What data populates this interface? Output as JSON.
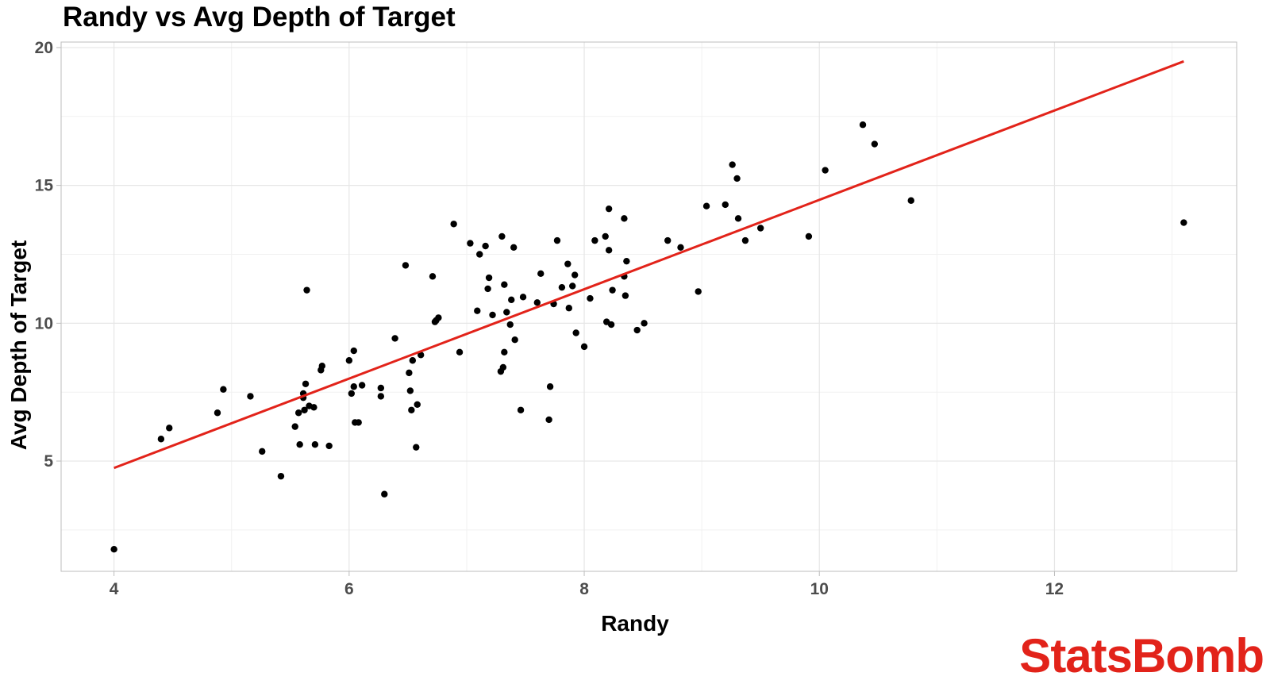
{
  "chart_data": {
    "type": "scatter",
    "title": "Randy vs Avg Depth of Target",
    "xlabel": "Randy",
    "ylabel": "Avg Depth of Target",
    "xlim": [
      3.55,
      13.55
    ],
    "ylim": [
      1.0,
      20.2
    ],
    "xticks": [
      4,
      6,
      8,
      10,
      12
    ],
    "yticks": [
      5,
      10,
      15,
      20
    ],
    "grid": true,
    "colors": {
      "points": "#000000",
      "trend": "#e2231a",
      "grid": "#e6e6e6",
      "frame": "#bdbdbd",
      "ticks": "#4d4d4d"
    },
    "trendline": {
      "x": [
        4.0,
        13.1
      ],
      "y": [
        4.75,
        19.5
      ]
    },
    "points": [
      {
        "x": 4.0,
        "y": 1.8
      },
      {
        "x": 4.4,
        "y": 5.8
      },
      {
        "x": 4.47,
        "y": 6.2
      },
      {
        "x": 4.88,
        "y": 6.75
      },
      {
        "x": 4.93,
        "y": 7.6
      },
      {
        "x": 5.16,
        "y": 7.35
      },
      {
        "x": 5.26,
        "y": 5.35
      },
      {
        "x": 5.42,
        "y": 4.45
      },
      {
        "x": 5.54,
        "y": 6.25
      },
      {
        "x": 5.57,
        "y": 6.75
      },
      {
        "x": 5.58,
        "y": 5.6
      },
      {
        "x": 5.61,
        "y": 7.3
      },
      {
        "x": 5.61,
        "y": 7.45
      },
      {
        "x": 5.62,
        "y": 6.85
      },
      {
        "x": 5.63,
        "y": 7.8
      },
      {
        "x": 5.64,
        "y": 11.2
      },
      {
        "x": 5.66,
        "y": 7.0
      },
      {
        "x": 5.7,
        "y": 6.95
      },
      {
        "x": 5.71,
        "y": 5.6
      },
      {
        "x": 5.76,
        "y": 8.3
      },
      {
        "x": 5.77,
        "y": 8.45
      },
      {
        "x": 5.83,
        "y": 5.55
      },
      {
        "x": 6.0,
        "y": 8.65
      },
      {
        "x": 6.02,
        "y": 7.45
      },
      {
        "x": 6.04,
        "y": 9.0
      },
      {
        "x": 6.04,
        "y": 7.7
      },
      {
        "x": 6.05,
        "y": 6.4
      },
      {
        "x": 6.08,
        "y": 6.4
      },
      {
        "x": 6.11,
        "y": 7.75
      },
      {
        "x": 6.3,
        "y": 3.8
      },
      {
        "x": 6.27,
        "y": 7.35
      },
      {
        "x": 6.27,
        "y": 7.65
      },
      {
        "x": 6.39,
        "y": 9.45
      },
      {
        "x": 6.48,
        "y": 12.1
      },
      {
        "x": 6.51,
        "y": 8.2
      },
      {
        "x": 6.52,
        "y": 7.55
      },
      {
        "x": 6.53,
        "y": 6.85
      },
      {
        "x": 6.54,
        "y": 8.65
      },
      {
        "x": 6.57,
        "y": 5.5
      },
      {
        "x": 6.58,
        "y": 7.05
      },
      {
        "x": 6.61,
        "y": 8.85
      },
      {
        "x": 6.71,
        "y": 11.7
      },
      {
        "x": 6.73,
        "y": 10.05
      },
      {
        "x": 6.74,
        "y": 10.1
      },
      {
        "x": 6.76,
        "y": 10.2
      },
      {
        "x": 6.89,
        "y": 13.6
      },
      {
        "x": 6.94,
        "y": 8.95
      },
      {
        "x": 7.03,
        "y": 12.9
      },
      {
        "x": 7.09,
        "y": 10.45
      },
      {
        "x": 7.11,
        "y": 12.5
      },
      {
        "x": 7.16,
        "y": 12.8
      },
      {
        "x": 7.18,
        "y": 11.25
      },
      {
        "x": 7.19,
        "y": 11.65
      },
      {
        "x": 7.22,
        "y": 10.3
      },
      {
        "x": 7.29,
        "y": 8.25
      },
      {
        "x": 7.3,
        "y": 13.15
      },
      {
        "x": 7.31,
        "y": 8.4
      },
      {
        "x": 7.32,
        "y": 11.4
      },
      {
        "x": 7.32,
        "y": 8.95
      },
      {
        "x": 7.34,
        "y": 10.4
      },
      {
        "x": 7.37,
        "y": 9.95
      },
      {
        "x": 7.38,
        "y": 10.85
      },
      {
        "x": 7.4,
        "y": 12.75
      },
      {
        "x": 7.41,
        "y": 9.4
      },
      {
        "x": 7.46,
        "y": 6.85
      },
      {
        "x": 7.48,
        "y": 10.95
      },
      {
        "x": 7.6,
        "y": 10.75
      },
      {
        "x": 7.63,
        "y": 11.8
      },
      {
        "x": 7.7,
        "y": 6.5
      },
      {
        "x": 7.71,
        "y": 7.7
      },
      {
        "x": 7.74,
        "y": 10.7
      },
      {
        "x": 7.77,
        "y": 13.0
      },
      {
        "x": 7.81,
        "y": 11.3
      },
      {
        "x": 7.86,
        "y": 12.15
      },
      {
        "x": 7.87,
        "y": 10.55
      },
      {
        "x": 7.9,
        "y": 11.35
      },
      {
        "x": 7.92,
        "y": 11.75
      },
      {
        "x": 7.93,
        "y": 9.65
      },
      {
        "x": 8.0,
        "y": 9.15
      },
      {
        "x": 8.05,
        "y": 10.9
      },
      {
        "x": 8.09,
        "y": 13.0
      },
      {
        "x": 8.18,
        "y": 13.15
      },
      {
        "x": 8.19,
        "y": 10.05
      },
      {
        "x": 8.21,
        "y": 14.15
      },
      {
        "x": 8.21,
        "y": 12.65
      },
      {
        "x": 8.23,
        "y": 9.95
      },
      {
        "x": 8.24,
        "y": 11.2
      },
      {
        "x": 8.34,
        "y": 13.8
      },
      {
        "x": 8.34,
        "y": 11.7
      },
      {
        "x": 8.35,
        "y": 11.0
      },
      {
        "x": 8.36,
        "y": 12.25
      },
      {
        "x": 8.45,
        "y": 9.75
      },
      {
        "x": 8.51,
        "y": 10.0
      },
      {
        "x": 8.71,
        "y": 13.0
      },
      {
        "x": 8.82,
        "y": 12.75
      },
      {
        "x": 8.97,
        "y": 11.15
      },
      {
        "x": 9.04,
        "y": 14.25
      },
      {
        "x": 9.2,
        "y": 14.3
      },
      {
        "x": 9.26,
        "y": 15.75
      },
      {
        "x": 9.3,
        "y": 15.25
      },
      {
        "x": 9.31,
        "y": 13.8
      },
      {
        "x": 9.37,
        "y": 13.0
      },
      {
        "x": 9.5,
        "y": 13.45
      },
      {
        "x": 9.91,
        "y": 13.15
      },
      {
        "x": 10.05,
        "y": 15.55
      },
      {
        "x": 10.37,
        "y": 17.2
      },
      {
        "x": 10.47,
        "y": 16.5
      },
      {
        "x": 10.78,
        "y": 14.45
      },
      {
        "x": 13.1,
        "y": 13.65
      }
    ]
  },
  "branding": {
    "logo_text": "StatsBomb",
    "logo_color": "#e2231a"
  }
}
